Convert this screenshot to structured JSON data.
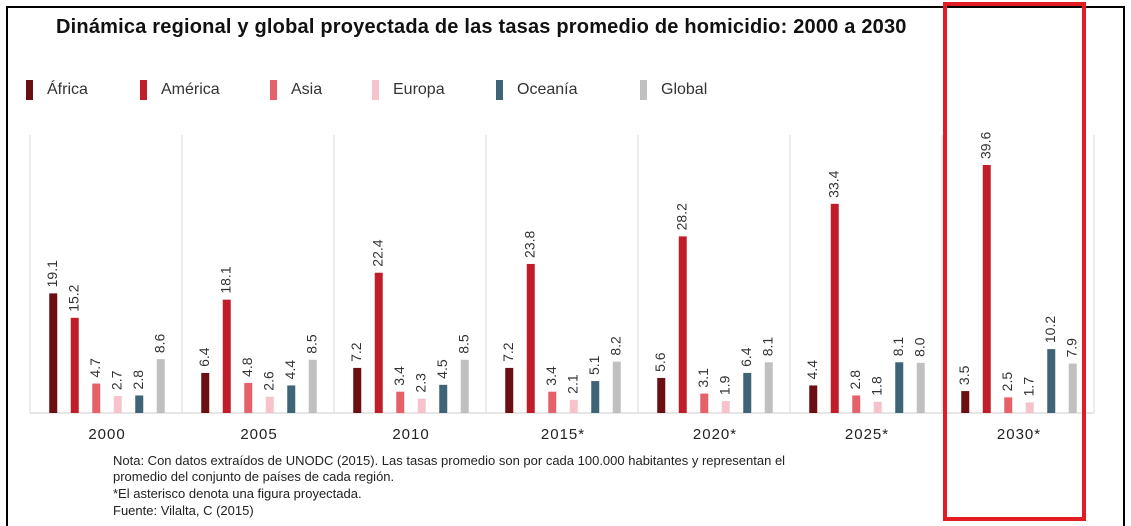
{
  "chart_data": {
    "type": "bar",
    "title": "Dinámica regional y global proyectada de las tasas promedio de homicidio: 2000 a 2030",
    "categories": [
      "2000",
      "2005",
      "2010",
      "2015*",
      "2020*",
      "2025*",
      "2030*"
    ],
    "series": [
      {
        "name": "África",
        "color": "#6b0f12",
        "values": [
          19.1,
          6.4,
          7.2,
          7.2,
          5.6,
          4.4,
          3.5
        ]
      },
      {
        "name": "América",
        "color": "#c01e2b",
        "values": [
          15.2,
          18.1,
          22.4,
          23.8,
          28.2,
          33.4,
          39.6
        ]
      },
      {
        "name": "Asia",
        "color": "#e5616c",
        "values": [
          4.7,
          4.8,
          3.4,
          3.4,
          3.1,
          2.8,
          2.5
        ]
      },
      {
        "name": "Europa",
        "color": "#f7c2cb",
        "values": [
          2.7,
          2.6,
          2.3,
          2.1,
          1.9,
          1.8,
          1.7
        ]
      },
      {
        "name": "Oceanía",
        "color": "#3e6478",
        "values": [
          2.8,
          4.4,
          4.5,
          5.1,
          6.4,
          8.1,
          10.2
        ]
      },
      {
        "name": "Global",
        "color": "#c0c0c0",
        "values": [
          8.6,
          8.5,
          8.5,
          8.2,
          8.1,
          8.0,
          7.9
        ]
      }
    ],
    "ylim": [
      0,
      42
    ],
    "legend_position": "top-left",
    "grid": "vertical separators between groups"
  },
  "notes": [
    "Nota: Con datos extraídos de UNODC (2015). Las tasas promedio son por cada 100.000 habitantes y representan el",
    "promedio del conjunto de países de cada región.",
    "*El asterisco denota una figura proyectada.",
    "Fuente: Vilalta, C (2015)"
  ],
  "highlight": {
    "target": "2030*",
    "color": "#e31b23"
  }
}
